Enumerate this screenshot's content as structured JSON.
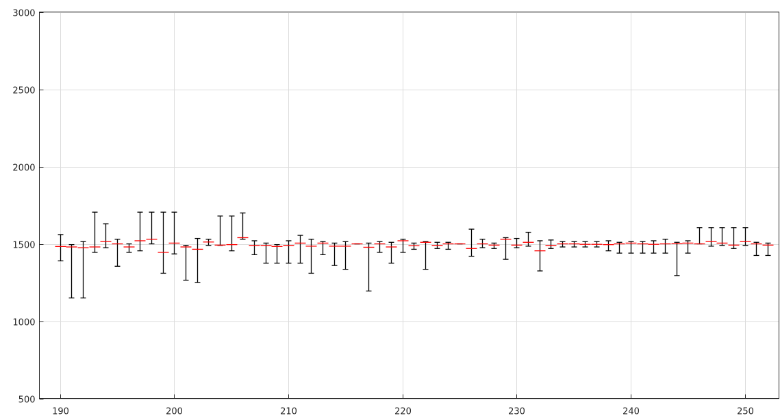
{
  "chart_data": {
    "type": "errorbar",
    "title": "",
    "xlabel": "",
    "ylabel": "",
    "xlim": [
      188.2,
      253
    ],
    "ylim": [
      500,
      3000
    ],
    "grid": true,
    "x_ticks": [
      "190",
      "200",
      "210",
      "220",
      "230",
      "240",
      "250"
    ],
    "y_ticks": [
      "500",
      "1000",
      "1500",
      "2000",
      "2500",
      "3000"
    ],
    "colors": {
      "median": "#ff0000",
      "whisker": "#000000",
      "grid": "#dcdcdc",
      "axis": "#262626"
    },
    "x": [
      190,
      191,
      192,
      193,
      194,
      195,
      196,
      197,
      198,
      199,
      200,
      201,
      202,
      203,
      204,
      205,
      206,
      207,
      208,
      209,
      210,
      211,
      212,
      213,
      214,
      215,
      216,
      217,
      218,
      219,
      220,
      221,
      222,
      223,
      224,
      225,
      226,
      227,
      228,
      229,
      230,
      231,
      232,
      233,
      234,
      235,
      236,
      237,
      238,
      239,
      240,
      241,
      242,
      243,
      244,
      245,
      246,
      247,
      248,
      249,
      250,
      251,
      252
    ],
    "median": [
      1483,
      1480,
      1475,
      1480,
      1515,
      1500,
      1480,
      1520,
      1530,
      1445,
      1505,
      1480,
      1465,
      1512,
      1492,
      1495,
      1540,
      1490,
      1490,
      1483,
      1490,
      1505,
      1485,
      1505,
      1485,
      1485,
      1500,
      1478,
      1500,
      1480,
      1520,
      1488,
      1510,
      1490,
      1500,
      1500,
      1470,
      1500,
      1492,
      1530,
      1492,
      1510,
      1455,
      1490,
      1500,
      1500,
      1497,
      1497,
      1495,
      1500,
      1505,
      1500,
      1497,
      1500,
      1502,
      1505,
      1500,
      1515,
      1505,
      1492,
      1515,
      1500,
      1492
    ],
    "lower": [
      1390,
      1150,
      1150,
      1445,
      1475,
      1355,
      1445,
      1455,
      1500,
      1310,
      1435,
      1265,
      1250,
      1490,
      1490,
      1455,
      1530,
      1430,
      1375,
      1375,
      1375,
      1375,
      1310,
      1430,
      1360,
      1335,
      1500,
      1195,
      1445,
      1375,
      1445,
      1465,
      1335,
      1470,
      1465,
      1500,
      1420,
      1475,
      1470,
      1400,
      1475,
      1485,
      1325,
      1470,
      1480,
      1480,
      1480,
      1480,
      1455,
      1440,
      1440,
      1440,
      1440,
      1440,
      1295,
      1440,
      1500,
      1485,
      1490,
      1470,
      1490,
      1425,
      1425
    ],
    "upper": [
      1560,
      1495,
      1515,
      1705,
      1630,
      1530,
      1500,
      1705,
      1705,
      1705,
      1705,
      1490,
      1535,
      1530,
      1680,
      1680,
      1700,
      1520,
      1505,
      1495,
      1520,
      1555,
      1530,
      1515,
      1505,
      1515,
      1500,
      1505,
      1515,
      1510,
      1530,
      1505,
      1515,
      1510,
      1510,
      1500,
      1595,
      1530,
      1505,
      1540,
      1535,
      1575,
      1520,
      1525,
      1515,
      1515,
      1515,
      1515,
      1520,
      1510,
      1515,
      1515,
      1520,
      1530,
      1510,
      1520,
      1605,
      1605,
      1605,
      1605,
      1605,
      1510,
      1505
    ]
  }
}
